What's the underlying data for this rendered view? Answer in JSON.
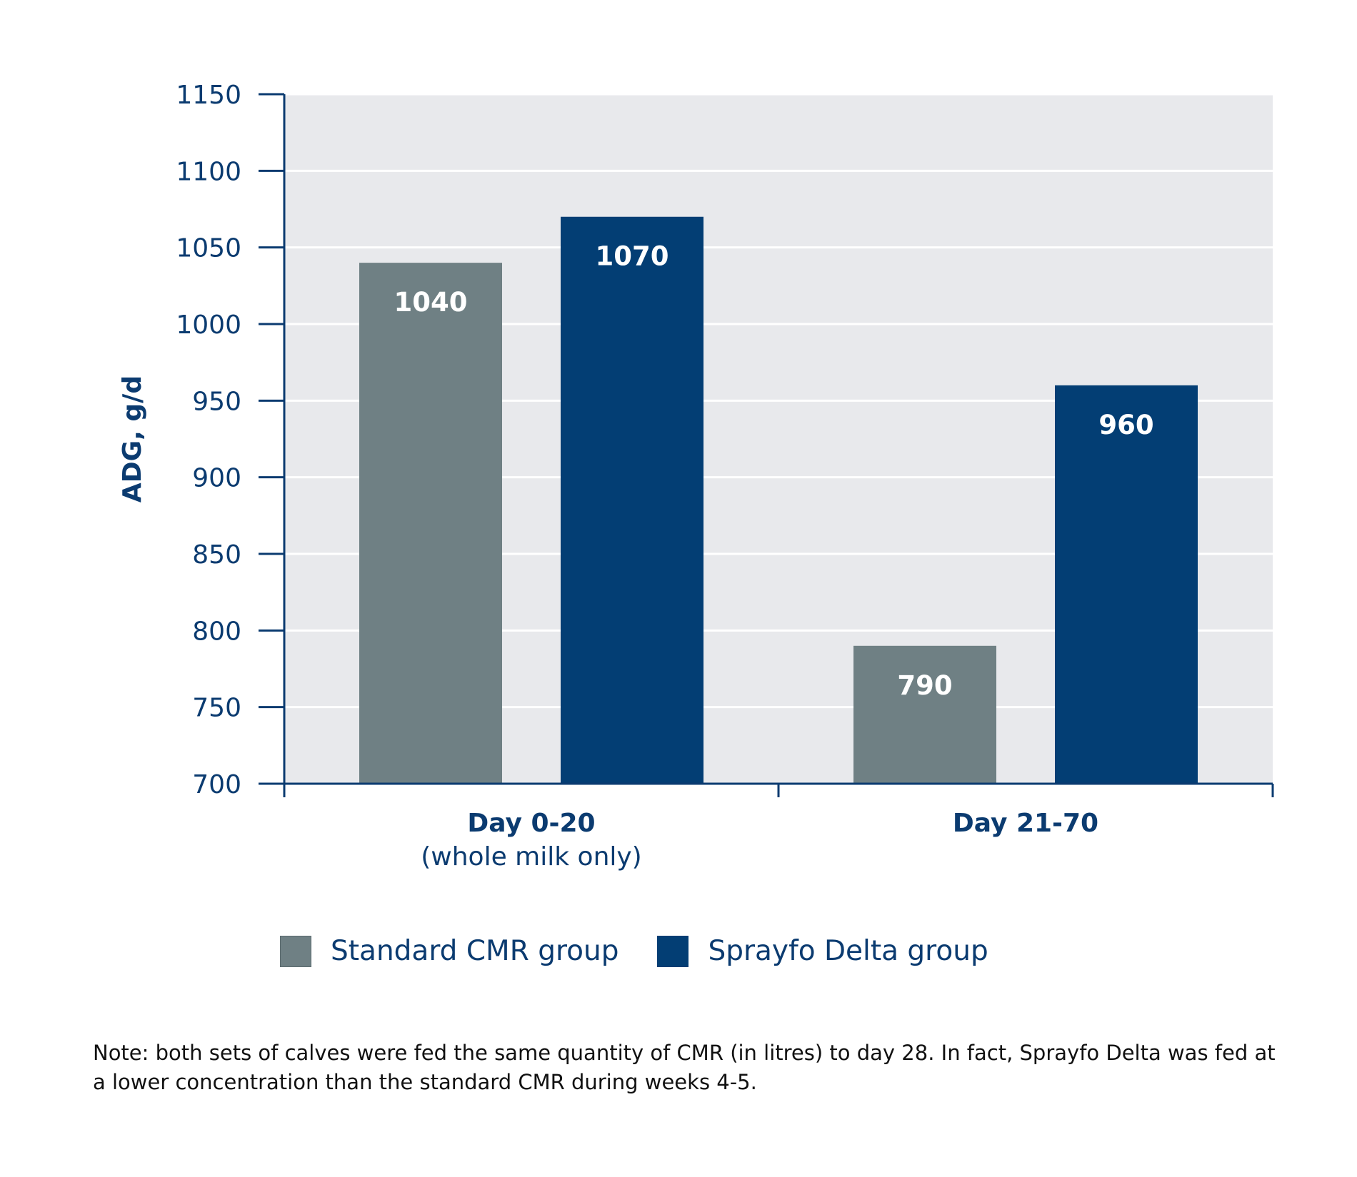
{
  "chart_data": {
    "type": "bar",
    "categories": [
      {
        "label": "Day 0-20",
        "sublabel": "(whole milk only)"
      },
      {
        "label": "Day 21-70",
        "sublabel": ""
      }
    ],
    "series": [
      {
        "name": "Standard CMR group",
        "color": "#6f8084",
        "values": [
          1040,
          790
        ],
        "value_labels": [
          "1040",
          "790"
        ]
      },
      {
        "name": "Sprayfo Delta group",
        "color": "#033e74",
        "values": [
          1070,
          960
        ],
        "value_labels": [
          "1070",
          "960"
        ]
      }
    ],
    "ylabel": "ADG, g/d",
    "ylim": [
      700,
      1150
    ],
    "yticks": [
      700,
      750,
      800,
      850,
      900,
      950,
      1000,
      1050,
      1100,
      1150
    ],
    "grid": true,
    "legend": "bottom",
    "colors": {
      "plot_background": "#e8e9ec",
      "axis": "#0b3b70",
      "text": "#0b3b70"
    }
  },
  "note": "Note: both sets of calves were fed the same quantity of CMR (in litres) to day 28. In fact, Sprayfo Delta was fed at a lower concentration than the standard CMR during weeks 4-5."
}
